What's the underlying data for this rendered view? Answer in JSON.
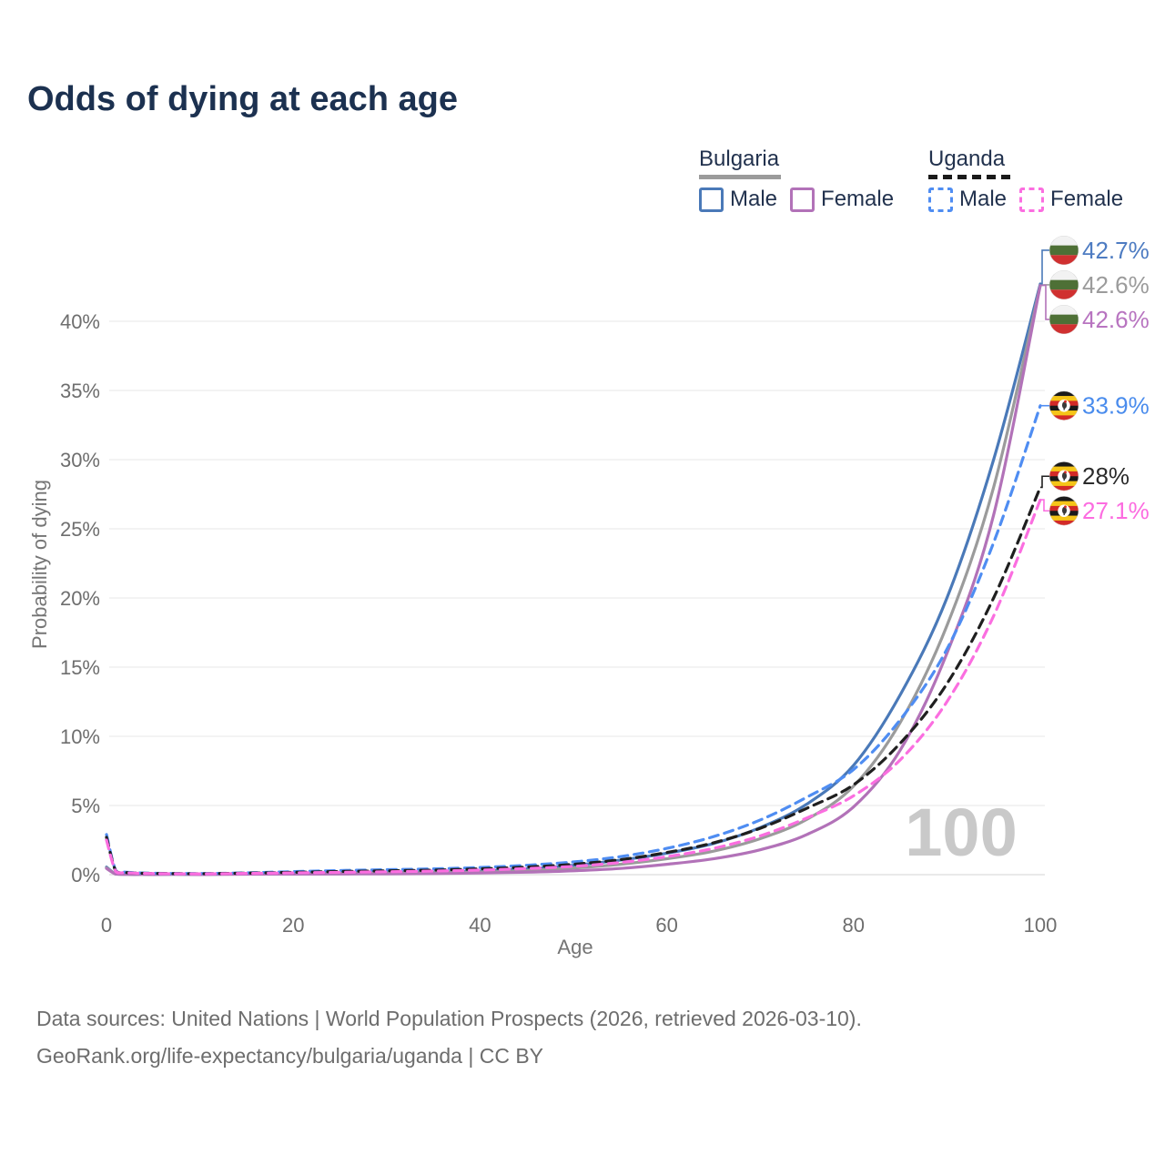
{
  "title": "Odds of dying at each age",
  "legend": {
    "groups": [
      {
        "name": "Bulgaria",
        "line_style": "solid",
        "line_color": "#9b9b9b",
        "items": [
          {
            "id": "bg_male",
            "label": "Male"
          },
          {
            "id": "bg_female",
            "label": "Female"
          }
        ]
      },
      {
        "name": "Uganda",
        "line_style": "dashed",
        "line_color": "#1a1a1a",
        "items": [
          {
            "id": "ug_male",
            "label": "Male"
          },
          {
            "id": "ug_female",
            "label": "Female"
          }
        ]
      }
    ]
  },
  "watermark": "100",
  "footer": {
    "line1": "Data sources: United Nations | World Population Prospects (2026, retrieved 2026-03-10).",
    "line2": "GeoRank.org/life-expectancy/bulgaria/uganda | CC BY"
  },
  "chart_data": {
    "type": "line",
    "title": "Odds of dying at each age",
    "xlabel": "Age",
    "ylabel": "Probability of dying",
    "x_ticks": [
      0,
      20,
      40,
      60,
      80,
      100
    ],
    "y_ticks_percent": [
      0,
      5,
      10,
      15,
      20,
      25,
      30,
      35,
      40
    ],
    "y_tick_labels": [
      "0%",
      "5%",
      "10%",
      "15%",
      "20%",
      "25%",
      "30%",
      "35%",
      "40%"
    ],
    "xlim": [
      0,
      100
    ],
    "ylim_percent": [
      0,
      44
    ],
    "grid": "horizontal",
    "legend_position": "top-right",
    "x_ages": [
      0,
      1,
      2,
      3,
      5,
      10,
      15,
      20,
      25,
      30,
      35,
      40,
      45,
      50,
      55,
      60,
      65,
      70,
      75,
      80,
      85,
      90,
      95,
      100
    ],
    "series": [
      {
        "id": "bg_male",
        "name": "Bulgaria Male",
        "country": "Bulgaria",
        "sex": "Male",
        "color": "#4a79b8",
        "label_color": "#4e7cc2",
        "dashed": false,
        "flag": "bulgaria",
        "end_label": "42.7%",
        "values_percent": [
          0.55,
          0.05,
          0.03,
          0.02,
          0.02,
          0.02,
          0.05,
          0.09,
          0.11,
          0.14,
          0.18,
          0.26,
          0.42,
          0.68,
          1.05,
          1.55,
          2.25,
          3.4,
          5.1,
          7.9,
          13.0,
          20.0,
          30.0,
          42.7
        ]
      },
      {
        "id": "bg_all",
        "name": "Bulgaria Both sexes",
        "country": "Bulgaria",
        "sex": "Both",
        "color": "#9b9b9b",
        "label_color": "#9b9b9b",
        "dashed": false,
        "flag": "bulgaria",
        "end_label": "42.6%",
        "values_percent": [
          0.5,
          0.04,
          0.03,
          0.02,
          0.02,
          0.02,
          0.04,
          0.07,
          0.08,
          0.1,
          0.14,
          0.19,
          0.3,
          0.48,
          0.75,
          1.15,
          1.7,
          2.6,
          4.0,
          6.4,
          11.0,
          18.0,
          28.0,
          42.6
        ]
      },
      {
        "id": "bg_female",
        "name": "Bulgaria Female",
        "country": "Bulgaria",
        "sex": "Female",
        "color": "#b272b8",
        "label_color": "#b874c0",
        "dashed": false,
        "flag": "bulgaria",
        "end_label": "42.6%",
        "values_percent": [
          0.45,
          0.04,
          0.02,
          0.01,
          0.01,
          0.01,
          0.03,
          0.04,
          0.05,
          0.06,
          0.08,
          0.12,
          0.18,
          0.28,
          0.45,
          0.75,
          1.15,
          1.8,
          2.9,
          4.9,
          9.0,
          16.0,
          26.0,
          42.6
        ]
      },
      {
        "id": "ug_male",
        "name": "Uganda Male",
        "country": "Uganda",
        "sex": "Male",
        "color": "#4f8df2",
        "label_color": "#4a8ced",
        "dashed": true,
        "flag": "uganda",
        "end_label": "33.9%",
        "values_percent": [
          2.9,
          0.28,
          0.18,
          0.14,
          0.1,
          0.08,
          0.13,
          0.22,
          0.3,
          0.36,
          0.42,
          0.52,
          0.68,
          0.92,
          1.3,
          1.9,
          2.75,
          3.95,
          5.6,
          7.6,
          11.2,
          16.3,
          24.0,
          33.9
        ]
      },
      {
        "id": "ug_all",
        "name": "Uganda Both sexes",
        "country": "Uganda",
        "sex": "Both",
        "color": "#1f1f1f",
        "label_color": "#2b2b2b",
        "dashed": true,
        "flag": "uganda",
        "end_label": "28%",
        "values_percent": [
          2.7,
          0.25,
          0.16,
          0.12,
          0.09,
          0.07,
          0.11,
          0.17,
          0.23,
          0.28,
          0.33,
          0.42,
          0.55,
          0.75,
          1.08,
          1.6,
          2.3,
          3.35,
          4.8,
          6.5,
          9.5,
          13.8,
          20.0,
          28.0
        ]
      },
      {
        "id": "ug_female",
        "name": "Uganda Female",
        "country": "Uganda",
        "sex": "Female",
        "color": "#fb6ee0",
        "label_color": "#fc6ce0",
        "dashed": true,
        "flag": "uganda",
        "end_label": "27.1%",
        "values_percent": [
          2.5,
          0.22,
          0.15,
          0.11,
          0.08,
          0.06,
          0.09,
          0.13,
          0.17,
          0.21,
          0.26,
          0.33,
          0.44,
          0.6,
          0.88,
          1.3,
          1.9,
          2.8,
          4.1,
          5.7,
          8.3,
          12.5,
          18.7,
          27.1
        ]
      }
    ],
    "flag_colors": {
      "bulgaria": {
        "white": "#f2f2f2",
        "green": "#4e7036",
        "red": "#d03030"
      },
      "uganda": {
        "black": "#1a1a1a",
        "yellow": "#f5c519",
        "red": "#d32a28",
        "circle": "#ffffff"
      }
    },
    "style": {
      "grid_color": "#efefef",
      "zero_line_color": "#e2e2e2",
      "tick_color": "#6e6e6e",
      "watermark_color": "#c9c9c9"
    }
  }
}
